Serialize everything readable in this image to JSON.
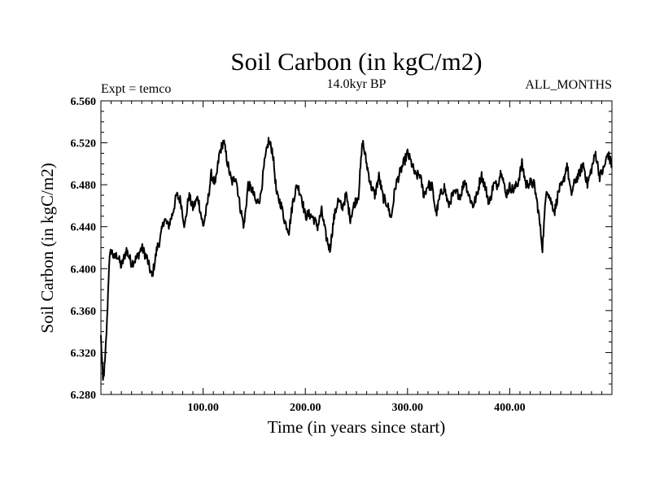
{
  "chart_data": {
    "type": "line",
    "title": "Soil Carbon (in kgC/m2)",
    "subtitle": "14.0kyr BP",
    "experiment_label": "Expt = temco",
    "period_label": "ALL_MONTHS",
    "xlabel": "Time (in years since start)",
    "ylabel": "Soil Carbon (in kgC/m2)",
    "xlim": [
      0,
      500
    ],
    "ylim": [
      6.28,
      6.56
    ],
    "x_ticks": [
      100,
      200,
      300,
      400
    ],
    "x_tick_labels": [
      "100.00",
      "200.00",
      "300.00",
      "400.00"
    ],
    "y_ticks": [
      6.28,
      6.32,
      6.36,
      6.4,
      6.44,
      6.48,
      6.52,
      6.56
    ],
    "y_tick_labels": [
      "6.280",
      "6.320",
      "6.360",
      "6.400",
      "6.440",
      "6.480",
      "6.520",
      "6.560"
    ],
    "series": [
      {
        "name": "Soil Carbon",
        "x": [
          0,
          2,
          4,
          6,
          8,
          10,
          13,
          16,
          20,
          25,
          30,
          35,
          40,
          45,
          50,
          53,
          55,
          58,
          62,
          66,
          70,
          74,
          78,
          82,
          86,
          90,
          95,
          100,
          104,
          108,
          112,
          116,
          120,
          124,
          128,
          132,
          136,
          140,
          144,
          148,
          152,
          156,
          160,
          164,
          168,
          172,
          176,
          180,
          184,
          188,
          192,
          196,
          200,
          204,
          208,
          212,
          216,
          220,
          224,
          228,
          232,
          236,
          240,
          244,
          248,
          252,
          256,
          260,
          264,
          268,
          272,
          276,
          280,
          284,
          288,
          292,
          296,
          300,
          304,
          308,
          312,
          316,
          320,
          324,
          328,
          332,
          336,
          340,
          344,
          348,
          352,
          356,
          360,
          364,
          368,
          372,
          376,
          380,
          384,
          388,
          392,
          396,
          400,
          404,
          408,
          412,
          416,
          420,
          424,
          428,
          432,
          436,
          440,
          444,
          448,
          452,
          456,
          460,
          464,
          468,
          472,
          476,
          480,
          484,
          488,
          492,
          496,
          500
        ],
        "values": [
          6.335,
          6.292,
          6.31,
          6.35,
          6.405,
          6.418,
          6.41,
          6.413,
          6.402,
          6.418,
          6.405,
          6.41,
          6.42,
          6.41,
          6.392,
          6.408,
          6.42,
          6.428,
          6.448,
          6.44,
          6.452,
          6.47,
          6.465,
          6.44,
          6.47,
          6.458,
          6.468,
          6.44,
          6.46,
          6.49,
          6.48,
          6.51,
          6.522,
          6.5,
          6.482,
          6.488,
          6.46,
          6.44,
          6.48,
          6.475,
          6.462,
          6.468,
          6.5,
          6.522,
          6.512,
          6.47,
          6.462,
          6.445,
          6.436,
          6.465,
          6.48,
          6.47,
          6.45,
          6.452,
          6.448,
          6.44,
          6.455,
          6.432,
          6.418,
          6.448,
          6.465,
          6.458,
          6.47,
          6.448,
          6.462,
          6.47,
          6.522,
          6.5,
          6.48,
          6.47,
          6.488,
          6.468,
          6.462,
          6.448,
          6.478,
          6.49,
          6.5,
          6.51,
          6.5,
          6.488,
          6.49,
          6.47,
          6.48,
          6.478,
          6.452,
          6.47,
          6.478,
          6.46,
          6.47,
          6.472,
          6.47,
          6.485,
          6.47,
          6.46,
          6.47,
          6.49,
          6.478,
          6.462,
          6.48,
          6.48,
          6.495,
          6.47,
          6.478,
          6.475,
          6.482,
          6.5,
          6.48,
          6.482,
          6.48,
          6.455,
          6.42,
          6.478,
          6.465,
          6.455,
          6.475,
          6.48,
          6.5,
          6.47,
          6.484,
          6.49,
          6.5,
          6.48,
          6.495,
          6.51,
          6.488,
          6.495,
          6.51,
          6.498
        ]
      }
    ]
  }
}
